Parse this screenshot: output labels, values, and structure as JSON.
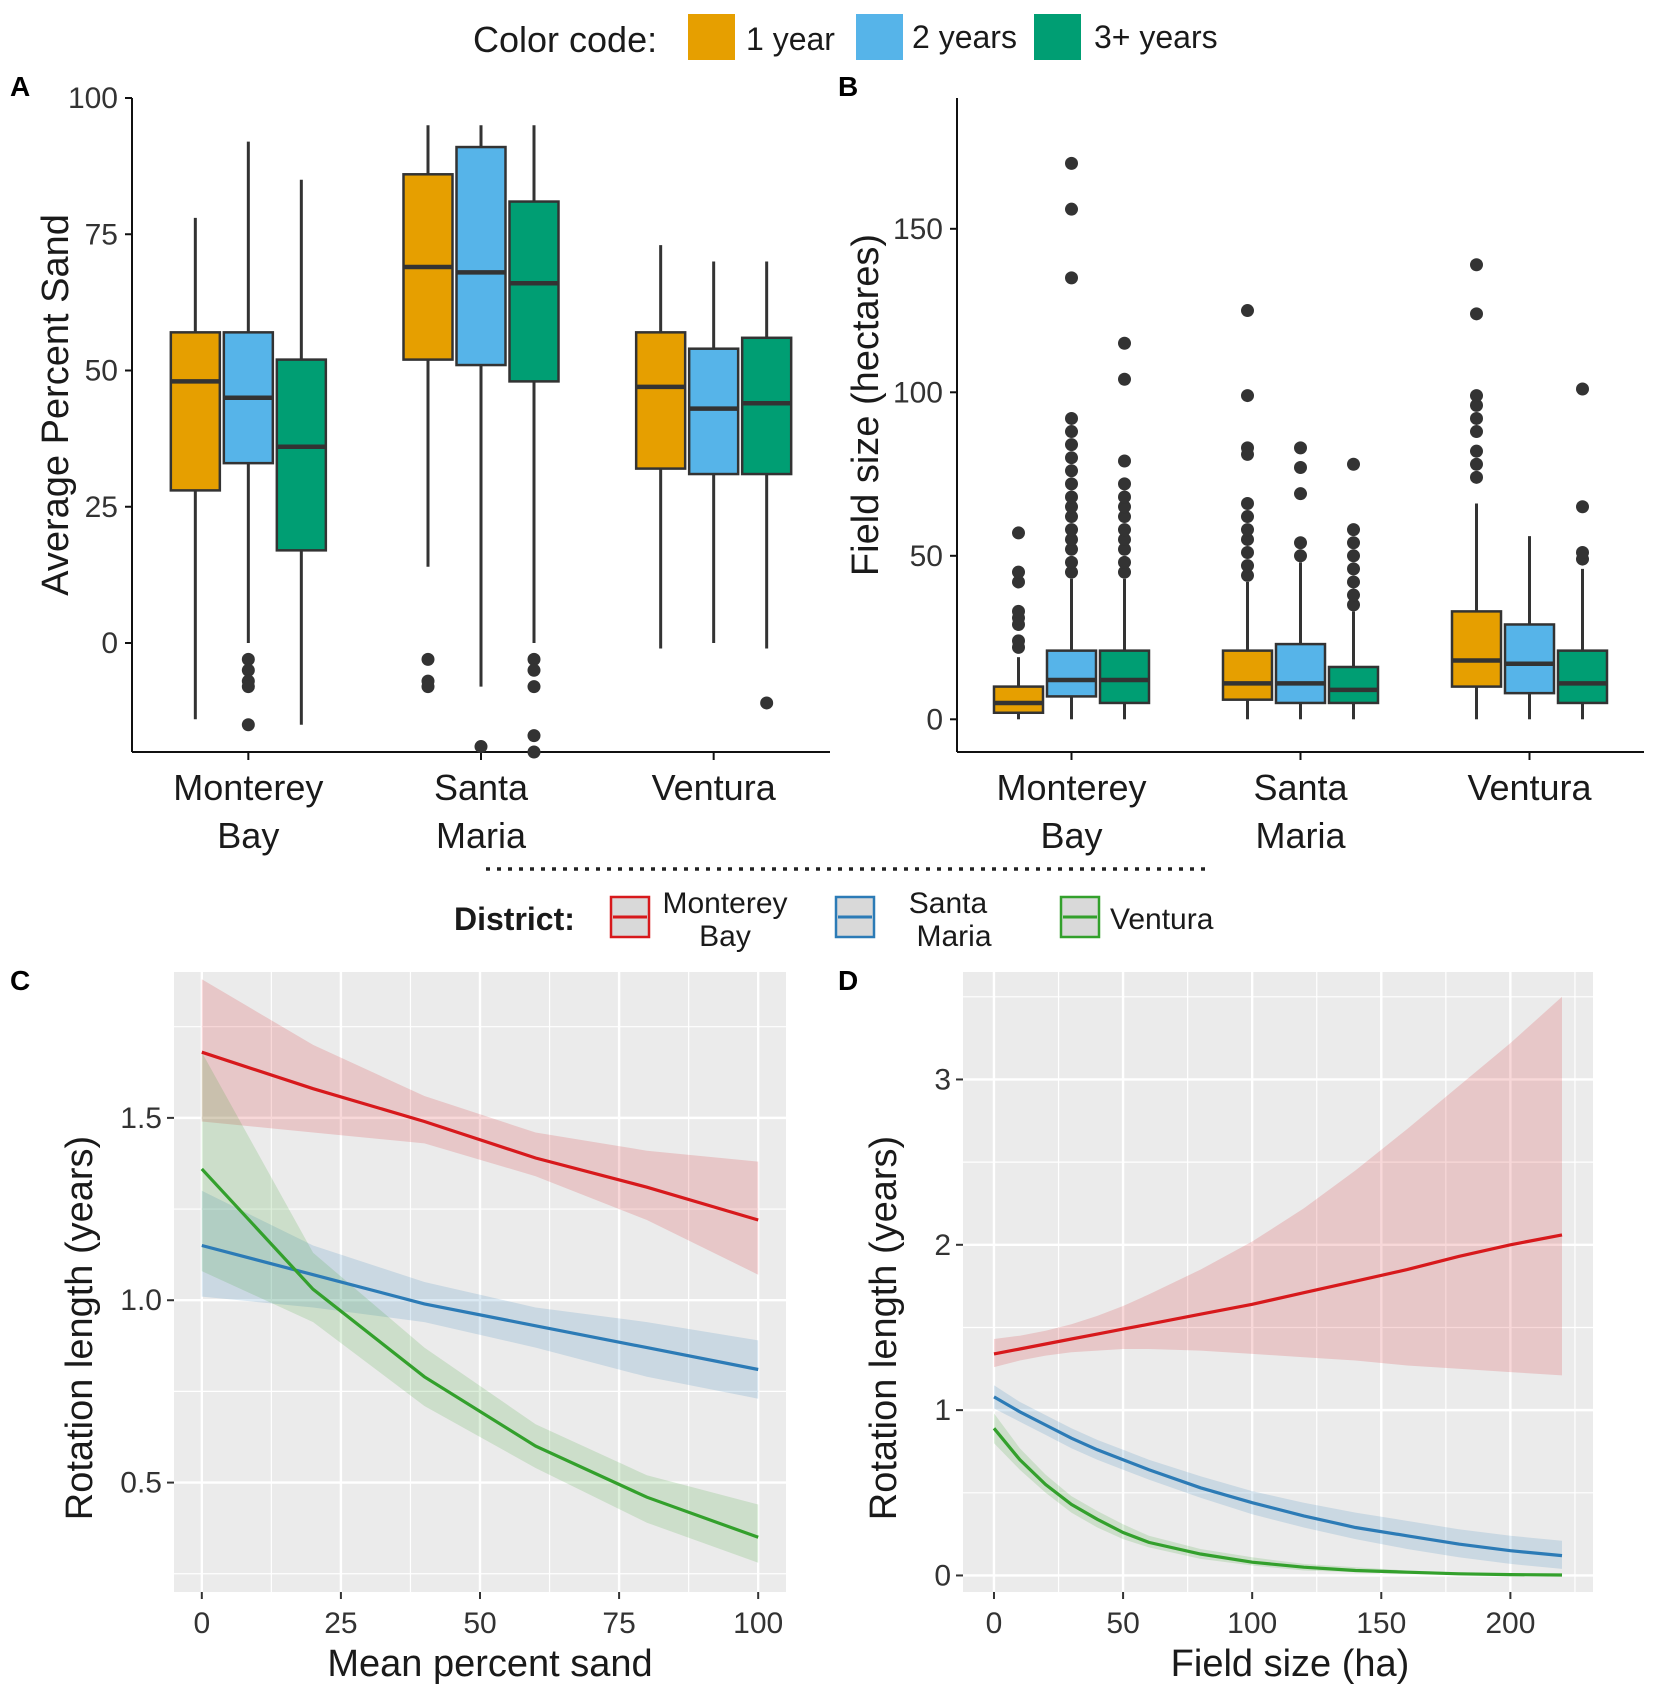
{
  "figure": {
    "color_code_title": "Color code:",
    "color_legend": [
      {
        "label": "1 year",
        "color": "#E69F00"
      },
      {
        "label": "2 years",
        "color": "#56B4E9"
      },
      {
        "label": "3+ years",
        "color": "#009E73"
      }
    ],
    "district_title": "District:",
    "district_legend": [
      {
        "label_lines": [
          "Monterey",
          "Bay"
        ],
        "color": "#D7191C"
      },
      {
        "label_lines": [
          "Santa",
          "Maria"
        ],
        "color": "#2C7BB6"
      },
      {
        "label_lines": [
          "Ventura"
        ],
        "color": "#33A02C"
      }
    ]
  },
  "chart_data": [
    {
      "panel": "A",
      "type": "boxplot",
      "ylabel": "Average Percent Sand",
      "xlabel": "",
      "ylim": [
        -20,
        100
      ],
      "yticks": [
        0,
        25,
        50,
        75,
        100
      ],
      "categories": [
        [
          "Monterey",
          "Bay"
        ],
        [
          "Santa",
          "Maria"
        ],
        [
          "Ventura"
        ]
      ],
      "groups": [
        "1 year",
        "2 years",
        "3+ years"
      ],
      "boxes": [
        [
          {
            "min": -14,
            "q1": 28,
            "median": 48,
            "q3": 57,
            "max": 78,
            "outliers": []
          },
          {
            "min": 0,
            "q1": 33,
            "median": 45,
            "q3": 57,
            "max": 92,
            "outliers": [
              -3,
              -5,
              -7,
              -8,
              -15
            ]
          },
          {
            "min": -15,
            "q1": 17,
            "median": 36,
            "q3": 52,
            "max": 85,
            "outliers": []
          }
        ],
        [
          {
            "min": 14,
            "q1": 52,
            "median": 69,
            "q3": 86,
            "max": 95,
            "outliers": [
              -3,
              -7,
              -8
            ]
          },
          {
            "min": -8,
            "q1": 51,
            "median": 68,
            "q3": 91,
            "max": 95,
            "outliers": [
              -19
            ]
          },
          {
            "min": 0,
            "q1": 48,
            "median": 66,
            "q3": 81,
            "max": 95,
            "outliers": [
              -3,
              -5,
              -8,
              -17,
              -20
            ]
          }
        ],
        [
          {
            "min": -1,
            "q1": 32,
            "median": 47,
            "q3": 57,
            "max": 73,
            "outliers": []
          },
          {
            "min": 0,
            "q1": 31,
            "median": 43,
            "q3": 54,
            "max": 70,
            "outliers": []
          },
          {
            "min": -1,
            "q1": 31,
            "median": 44,
            "q3": 56,
            "max": 70,
            "outliers": [
              -11
            ]
          }
        ]
      ]
    },
    {
      "panel": "B",
      "type": "boxplot",
      "ylabel": "Field size (hectares)",
      "xlabel": "",
      "ylim": [
        -10,
        190
      ],
      "yticks": [
        0,
        50,
        100,
        150
      ],
      "categories": [
        [
          "Monterey",
          "Bay"
        ],
        [
          "Santa",
          "Maria"
        ],
        [
          "Ventura"
        ]
      ],
      "groups": [
        "1 year",
        "2 years",
        "3+ years"
      ],
      "boxes": [
        [
          {
            "min": 0,
            "q1": 2,
            "median": 5,
            "q3": 10,
            "max": 19,
            "outliers": [
              22,
              24,
              29,
              31,
              33,
              42,
              45,
              57
            ]
          },
          {
            "min": 0,
            "q1": 7,
            "median": 12,
            "q3": 21,
            "max": 43,
            "outliers": [
              45,
              48,
              52,
              55,
              58,
              62,
              65,
              68,
              72,
              76,
              80,
              84,
              88,
              92,
              135,
              156,
              170
            ]
          },
          {
            "min": 0,
            "q1": 5,
            "median": 12,
            "q3": 21,
            "max": 43,
            "outliers": [
              45,
              48,
              52,
              55,
              58,
              62,
              65,
              68,
              72,
              79,
              104,
              115
            ]
          }
        ],
        [
          {
            "min": 0,
            "q1": 6,
            "median": 11,
            "q3": 21,
            "max": 42,
            "outliers": [
              44,
              47,
              51,
              55,
              58,
              62,
              66,
              81,
              83,
              99,
              125
            ]
          },
          {
            "min": 0,
            "q1": 5,
            "median": 11,
            "q3": 23,
            "max": 48,
            "outliers": [
              50,
              54,
              69,
              77,
              83
            ]
          },
          {
            "min": 0,
            "q1": 5,
            "median": 9,
            "q3": 16,
            "max": 33,
            "outliers": [
              35,
              38,
              42,
              46,
              50,
              54,
              58,
              78
            ]
          }
        ],
        [
          {
            "min": 0,
            "q1": 10,
            "median": 18,
            "q3": 33,
            "max": 66,
            "outliers": [
              74,
              78,
              82,
              88,
              92,
              96,
              99,
              124,
              139
            ]
          },
          {
            "min": 0,
            "q1": 8,
            "median": 17,
            "q3": 29,
            "max": 56,
            "outliers": []
          },
          {
            "min": 0,
            "q1": 5,
            "median": 11,
            "q3": 21,
            "max": 46,
            "outliers": [
              49,
              51,
              65,
              101
            ]
          }
        ]
      ]
    },
    {
      "panel": "C",
      "type": "line",
      "xlabel": "Mean percent sand",
      "ylabel": "Rotation length (years)",
      "xlim": [
        -5,
        105
      ],
      "ylim": [
        0.2,
        1.9
      ],
      "xticks": [
        0,
        25,
        50,
        75,
        100
      ],
      "yticks": [
        0.5,
        1.0,
        1.5
      ],
      "ytick_labels": [
        "0.5",
        "1.0",
        "1.5"
      ],
      "x": [
        0,
        20,
        40,
        60,
        80,
        100
      ],
      "series": [
        {
          "name": "Monterey Bay",
          "values": [
            1.68,
            1.58,
            1.49,
            1.39,
            1.31,
            1.22
          ],
          "lower": [
            1.49,
            1.46,
            1.43,
            1.34,
            1.22,
            1.07
          ],
          "upper": [
            1.88,
            1.7,
            1.56,
            1.46,
            1.41,
            1.38
          ]
        },
        {
          "name": "Santa Maria",
          "values": [
            1.15,
            1.07,
            0.99,
            0.93,
            0.87,
            0.81
          ],
          "lower": [
            1.01,
            0.98,
            0.94,
            0.87,
            0.79,
            0.73
          ],
          "upper": [
            1.3,
            1.15,
            1.05,
            0.98,
            0.94,
            0.89
          ]
        },
        {
          "name": "Ventura",
          "values": [
            1.36,
            1.03,
            0.79,
            0.6,
            0.46,
            0.35
          ],
          "lower": [
            1.08,
            0.94,
            0.71,
            0.54,
            0.39,
            0.28
          ],
          "upper": [
            1.68,
            1.13,
            0.87,
            0.66,
            0.52,
            0.44
          ]
        }
      ]
    },
    {
      "panel": "D",
      "type": "line",
      "xlabel": "Field size (ha)",
      "ylabel": "Rotation length (years)",
      "xlim": [
        -12,
        232
      ],
      "ylim": [
        -0.1,
        3.65
      ],
      "xticks": [
        0,
        50,
        100,
        150,
        200
      ],
      "yticks": [
        0,
        1,
        2,
        3
      ],
      "x": [
        0,
        10,
        20,
        30,
        40,
        50,
        60,
        80,
        100,
        120,
        140,
        160,
        180,
        200,
        220
      ],
      "series": [
        {
          "name": "Monterey Bay",
          "values": [
            1.34,
            1.37,
            1.4,
            1.43,
            1.46,
            1.49,
            1.52,
            1.58,
            1.64,
            1.71,
            1.78,
            1.85,
            1.93,
            2.0,
            2.06
          ],
          "lower": [
            1.26,
            1.3,
            1.33,
            1.35,
            1.36,
            1.37,
            1.37,
            1.36,
            1.34,
            1.32,
            1.3,
            1.27,
            1.25,
            1.23,
            1.21
          ],
          "upper": [
            1.43,
            1.45,
            1.48,
            1.52,
            1.57,
            1.63,
            1.7,
            1.85,
            2.02,
            2.22,
            2.45,
            2.7,
            2.96,
            3.22,
            3.5
          ]
        },
        {
          "name": "Santa Maria",
          "values": [
            1.08,
            0.99,
            0.91,
            0.83,
            0.76,
            0.7,
            0.64,
            0.53,
            0.44,
            0.36,
            0.29,
            0.24,
            0.19,
            0.15,
            0.12
          ],
          "lower": [
            1.01,
            0.93,
            0.85,
            0.77,
            0.7,
            0.64,
            0.58,
            0.47,
            0.37,
            0.29,
            0.22,
            0.16,
            0.11,
            0.07,
            0.04
          ],
          "upper": [
            1.15,
            1.05,
            0.97,
            0.89,
            0.82,
            0.76,
            0.7,
            0.6,
            0.51,
            0.44,
            0.38,
            0.33,
            0.28,
            0.24,
            0.21
          ]
        },
        {
          "name": "Ventura",
          "values": [
            0.89,
            0.7,
            0.55,
            0.43,
            0.34,
            0.26,
            0.2,
            0.13,
            0.08,
            0.05,
            0.03,
            0.02,
            0.01,
            0.005,
            0.003
          ],
          "lower": [
            0.8,
            0.64,
            0.5,
            0.38,
            0.29,
            0.22,
            0.17,
            0.1,
            0.06,
            0.03,
            0.02,
            0.01,
            0.005,
            0.002,
            0.001
          ],
          "upper": [
            0.98,
            0.77,
            0.61,
            0.48,
            0.39,
            0.31,
            0.24,
            0.16,
            0.11,
            0.07,
            0.05,
            0.03,
            0.02,
            0.01,
            0.01
          ]
        }
      ]
    }
  ]
}
